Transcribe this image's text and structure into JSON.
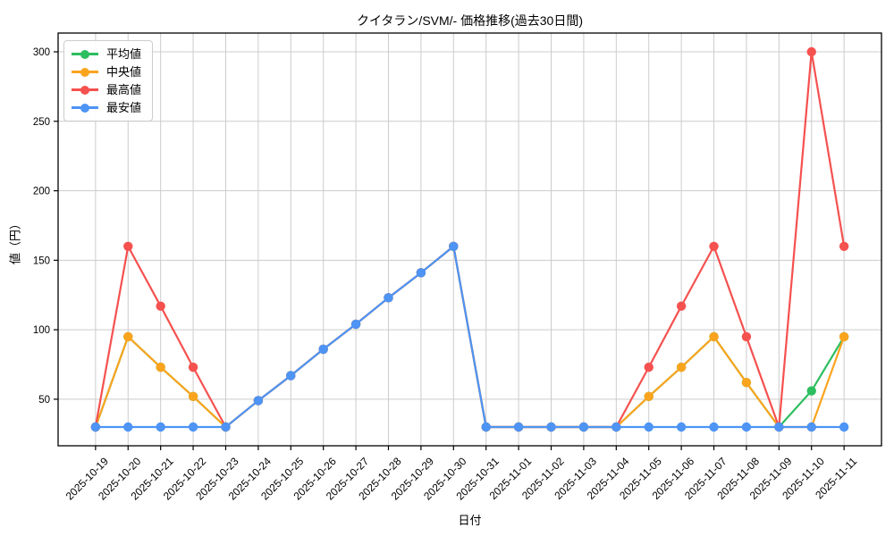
{
  "figure": {
    "background": "#ffffff",
    "text_color": "#000000",
    "grid_color": "#cccccc",
    "spine_color": "#000000"
  },
  "chart_data": {
    "type": "line",
    "title": "クイタラン/SVM/- 価格推移(過去30日間)",
    "xlabel": "日付",
    "ylabel": "値（円）",
    "grid": true,
    "legend_position": "upper-left",
    "ylim": [
      16.5,
      313.5
    ],
    "yticks": [
      50,
      100,
      150,
      200,
      250,
      300
    ],
    "categories": [
      "2025-10-19",
      "2025-10-20",
      "2025-10-21",
      "2025-10-22",
      "2025-10-23",
      "2025-10-24",
      "2025-10-25",
      "2025-10-26",
      "2025-10-27",
      "2025-10-28",
      "2025-10-29",
      "2025-10-30",
      "2025-10-31",
      "2025-11-01",
      "2025-11-02",
      "2025-11-03",
      "2025-11-04",
      "2025-11-05",
      "2025-11-06",
      "2025-11-07",
      "2025-11-08",
      "2025-11-09",
      "2025-11-10",
      "2025-11-11"
    ],
    "series": [
      {
        "name": "平均値",
        "color": "#2dbe60",
        "values": [
          30,
          95,
          73,
          52,
          30,
          49,
          67,
          86,
          104,
          123,
          141,
          160,
          30,
          30,
          30,
          30,
          30,
          52,
          73,
          95,
          62,
          30,
          56,
          95
        ]
      },
      {
        "name": "中央値",
        "color": "#faa41e",
        "values": [
          30,
          95,
          73,
          52,
          30,
          49,
          67,
          86,
          104,
          123,
          141,
          160,
          30,
          30,
          30,
          30,
          30,
          52,
          73,
          95,
          62,
          30,
          30,
          95
        ]
      },
      {
        "name": "最高値",
        "color": "#f5514f",
        "values": [
          30,
          160,
          117,
          73,
          30,
          49,
          67,
          86,
          104,
          123,
          141,
          160,
          30,
          30,
          30,
          30,
          30,
          73,
          117,
          160,
          95,
          30,
          300,
          160
        ]
      },
      {
        "name": "最安値",
        "color": "#4d94f5",
        "values": [
          30,
          30,
          30,
          30,
          30,
          49,
          67,
          86,
          104,
          123,
          141,
          160,
          30,
          30,
          30,
          30,
          30,
          30,
          30,
          30,
          30,
          30,
          30,
          30
        ]
      }
    ]
  }
}
